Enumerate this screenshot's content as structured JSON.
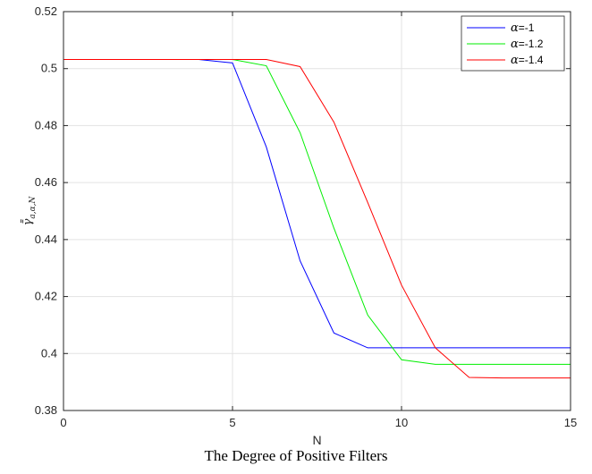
{
  "chart_data": {
    "type": "line",
    "x": [
      0,
      1,
      2,
      3,
      4,
      5,
      6,
      7,
      8,
      9,
      10,
      11,
      12,
      13,
      14,
      15
    ],
    "series": [
      {
        "name": "α=-1",
        "legend_symbol": "α",
        "legend_value": "=-1",
        "color": "#0000ff",
        "values": [
          0.5032,
          0.5032,
          0.5032,
          0.5032,
          0.5032,
          0.502,
          0.4725,
          0.4325,
          0.4072,
          0.402,
          0.402,
          0.402,
          0.402,
          0.402,
          0.402,
          0.402
        ]
      },
      {
        "name": "α=-1.2",
        "legend_symbol": "α",
        "legend_value": "=-1.2",
        "color": "#00ee00",
        "values": [
          0.5032,
          0.5032,
          0.5032,
          0.5032,
          0.5032,
          0.5032,
          0.501,
          0.4775,
          0.444,
          0.4135,
          0.3978,
          0.3962,
          0.3962,
          0.3962,
          0.3962,
          0.3962
        ]
      },
      {
        "name": "α=-1.4",
        "legend_symbol": "α",
        "legend_value": "=-1.4",
        "color": "#ff0000",
        "values": [
          0.5032,
          0.5032,
          0.5032,
          0.5032,
          0.5032,
          0.5032,
          0.5032,
          0.5007,
          0.4812,
          0.453,
          0.424,
          0.402,
          0.3916,
          0.3914,
          0.3914,
          0.3914
        ]
      }
    ],
    "xlabel": "N",
    "ylabel": "γ̄̄",
    "ylabel_sub": "a,α,N",
    "xlim": [
      0,
      15
    ],
    "ylim": [
      0.38,
      0.52
    ],
    "x_ticks": [
      0,
      5,
      10,
      15
    ],
    "x_tick_labels": [
      "0",
      "5",
      "10",
      "15"
    ],
    "y_ticks": [
      0.38,
      0.4,
      0.42,
      0.44,
      0.46,
      0.48,
      0.5,
      0.52
    ],
    "y_tick_labels": [
      "0.38",
      "0.4",
      "0.42",
      "0.44",
      "0.46",
      "0.48",
      "0.5",
      "0.52"
    ],
    "grid": true,
    "legend_position": "top-right"
  },
  "caption": "The Degree of Positive Filters"
}
